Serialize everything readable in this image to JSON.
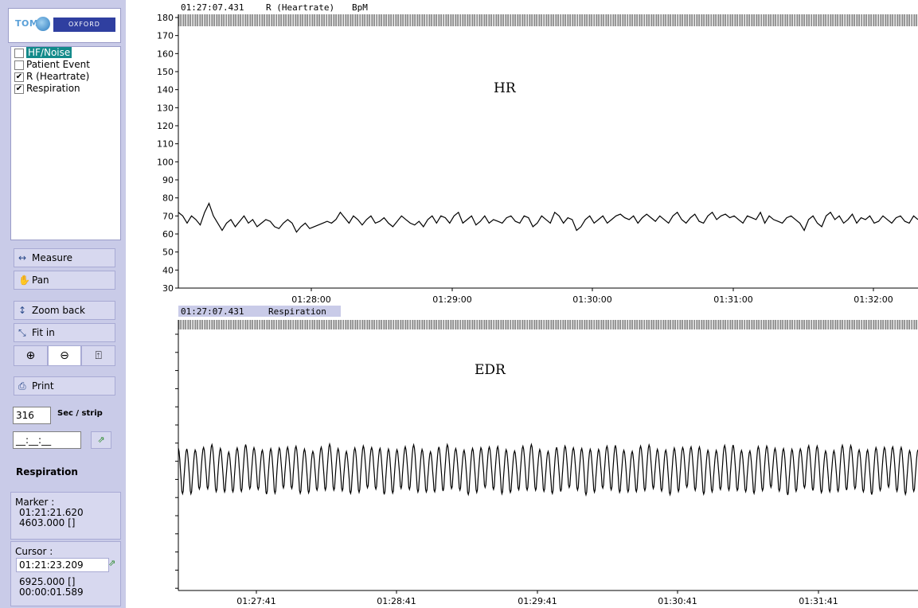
{
  "logo": {
    "left_text": "TOM",
    "right_text": "OXFORD"
  },
  "channels": [
    {
      "label": "HF/Noise",
      "checked": false,
      "selected": true
    },
    {
      "label": "Patient Event",
      "checked": false,
      "selected": false
    },
    {
      "label": "R (Heartrate)",
      "checked": true,
      "selected": false
    },
    {
      "label": "Respiration",
      "checked": true,
      "selected": false
    }
  ],
  "buttons": {
    "measure": "Measure",
    "pan": "Pan",
    "zoom_back": "Zoom back",
    "fit_in": "Fit in",
    "print": "Print"
  },
  "strip": {
    "seconds_value": "316",
    "seconds_label": "Sec / strip",
    "time_value": "__:__:__"
  },
  "selected_channel": "Respiration",
  "marker": {
    "label": "Marker :",
    "time": "01:21:21.620",
    "value": "4603.000 []"
  },
  "cursor": {
    "label": "Cursor :",
    "time": "01:21:23.209",
    "value": "6925.000 []",
    "delta": "00:00:01.589"
  },
  "colors": {
    "sidebar": "#c9cbe8",
    "selection": "#138a8a",
    "trace": "#000000"
  },
  "hr_plot": {
    "header_time": "01:27:07.431",
    "header_channel": "R (Heartrate)",
    "header_unit": "BpM",
    "annotation": "HR",
    "y_ticks": [
      "180",
      "170",
      "160",
      "150",
      "140",
      "130",
      "120",
      "110",
      "100",
      "90",
      "80",
      "70",
      "60",
      "50",
      "40",
      "30"
    ],
    "x_ticks": [
      "01:28:00",
      "01:29:00",
      "01:30:00",
      "01:31:00",
      "01:32:00"
    ]
  },
  "edr_plot": {
    "header_time": "01:27:07.431",
    "header_channel": "Respiration",
    "annotation": "EDR",
    "x_ticks": [
      "01:27:41",
      "01:28:41",
      "01:29:41",
      "01:30:41",
      "01:31:41"
    ]
  },
  "chart_data": [
    {
      "type": "line",
      "title": "R (Heartrate)",
      "ylabel": "BpM",
      "ylim": [
        30,
        180
      ],
      "x_tick_labels": [
        "01:28:00",
        "01:29:00",
        "01:30:00",
        "01:31:00",
        "01:32:00"
      ],
      "series": [
        {
          "name": "R (Heartrate)",
          "values": [
            72,
            70,
            66,
            70,
            68,
            65,
            72,
            77,
            70,
            66,
            62,
            66,
            68,
            64,
            67,
            70,
            66,
            68,
            64,
            66,
            68,
            67,
            64,
            63,
            66,
            68,
            66,
            61,
            64,
            66,
            63,
            64,
            65,
            66,
            67,
            66,
            68,
            72,
            69,
            66,
            70,
            68,
            65,
            68,
            70,
            66,
            67,
            69,
            66,
            64,
            67,
            70,
            68,
            66,
            65,
            67,
            64,
            68,
            70,
            66,
            70,
            69,
            66,
            70,
            72,
            66,
            68,
            70,
            65,
            67,
            70,
            66,
            68,
            67,
            66,
            69,
            70,
            67,
            66,
            70,
            69,
            64,
            66,
            70,
            68,
            66,
            72,
            70,
            66,
            69,
            68,
            62,
            64,
            68,
            70,
            66,
            68,
            70,
            66,
            68,
            70,
            71,
            69,
            68,
            70,
            66,
            69,
            71,
            69,
            67,
            70,
            68,
            66,
            70,
            72,
            68,
            66,
            69,
            71,
            67,
            66,
            70,
            72,
            68,
            70,
            71,
            69,
            70,
            68,
            66,
            70,
            69,
            68,
            72,
            66,
            70,
            68,
            67,
            66,
            69,
            70,
            68,
            66,
            62,
            68,
            70,
            66,
            64,
            70,
            72,
            68,
            70,
            66,
            68,
            71,
            66,
            69,
            68,
            70,
            66,
            67,
            70,
            68,
            66,
            69,
            70,
            67,
            66,
            70,
            68
          ]
        }
      ]
    },
    {
      "type": "line",
      "title": "Respiration",
      "x_tick_labels": [
        "01:27:41",
        "01:28:41",
        "01:29:41",
        "01:30:41",
        "01:31:41"
      ],
      "series": [
        {
          "name": "Respiration",
          "cycles": 88,
          "mean": 0.5,
          "amplitude": 0.42
        }
      ]
    }
  ]
}
